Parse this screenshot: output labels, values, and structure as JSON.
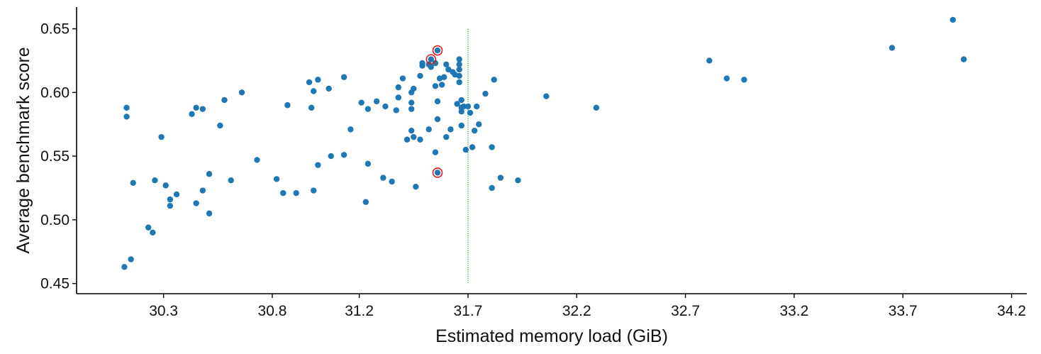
{
  "chart_data": {
    "type": "scatter",
    "title": "",
    "xlabel": "Estimated memory load (GiB)",
    "ylabel": "Average benchmark score",
    "xlim": [
      29.9,
      34.27
    ],
    "ylim": [
      0.442,
      0.667
    ],
    "x_ticks": [
      30.3,
      30.8,
      31.2,
      31.7,
      32.2,
      32.7,
      33.2,
      33.7,
      34.2
    ],
    "x_tick_labels": [
      "30.3",
      "30.8",
      "31.2",
      "31.7",
      "32.2",
      "32.7",
      "33.2",
      "33.7",
      "34.2"
    ],
    "y_ticks": [
      0.45,
      0.5,
      0.55,
      0.6,
      0.65
    ],
    "y_tick_labels": [
      "0.45",
      "0.50",
      "0.55",
      "0.60",
      "0.65"
    ],
    "grid": false,
    "vline": {
      "x": 31.7,
      "y_range": [
        0.45,
        0.65
      ],
      "color": "#2ca02c",
      "style": "dotted"
    },
    "point_color": "#1f77b4",
    "highlight_color": "#e31a1c",
    "points": [
      [
        30.12,
        0.463
      ],
      [
        30.15,
        0.469
      ],
      [
        30.16,
        0.529
      ],
      [
        30.13,
        0.588
      ],
      [
        30.13,
        0.581
      ],
      [
        30.23,
        0.494
      ],
      [
        30.25,
        0.49
      ],
      [
        30.26,
        0.531
      ],
      [
        30.29,
        0.565
      ],
      [
        30.31,
        0.527
      ],
      [
        30.33,
        0.516
      ],
      [
        30.33,
        0.511
      ],
      [
        30.36,
        0.52
      ],
      [
        30.43,
        0.583
      ],
      [
        30.45,
        0.588
      ],
      [
        30.45,
        0.513
      ],
      [
        30.48,
        0.587
      ],
      [
        30.48,
        0.523
      ],
      [
        30.51,
        0.536
      ],
      [
        30.51,
        0.505
      ],
      [
        30.56,
        0.574
      ],
      [
        30.58,
        0.594
      ],
      [
        30.61,
        0.531
      ],
      [
        30.66,
        0.6
      ],
      [
        30.73,
        0.547
      ],
      [
        30.82,
        0.532
      ],
      [
        30.85,
        0.521
      ],
      [
        30.87,
        0.59
      ],
      [
        30.91,
        0.521
      ],
      [
        30.97,
        0.608
      ],
      [
        30.98,
        0.588
      ],
      [
        30.99,
        0.601
      ],
      [
        30.99,
        0.523
      ],
      [
        31.01,
        0.543
      ],
      [
        31.01,
        0.61
      ],
      [
        31.06,
        0.603
      ],
      [
        31.07,
        0.55
      ],
      [
        31.13,
        0.551
      ],
      [
        31.13,
        0.612
      ],
      [
        31.16,
        0.571
      ],
      [
        31.21,
        0.592
      ],
      [
        31.23,
        0.514
      ],
      [
        31.24,
        0.544
      ],
      [
        31.24,
        0.587
      ],
      [
        31.28,
        0.593
      ],
      [
        31.31,
        0.533
      ],
      [
        31.32,
        0.589
      ],
      [
        31.35,
        0.53
      ],
      [
        31.37,
        0.586
      ],
      [
        31.38,
        0.604
      ],
      [
        31.38,
        0.596
      ],
      [
        31.4,
        0.611
      ],
      [
        31.42,
        0.563
      ],
      [
        31.44,
        0.592
      ],
      [
        31.44,
        0.587
      ],
      [
        31.44,
        0.57
      ],
      [
        31.44,
        0.6
      ],
      [
        31.45,
        0.603
      ],
      [
        31.45,
        0.565
      ],
      [
        31.46,
        0.526
      ],
      [
        31.48,
        0.613
      ],
      [
        31.48,
        0.563
      ],
      [
        31.49,
        0.621
      ],
      [
        31.49,
        0.623
      ],
      [
        31.52,
        0.622
      ],
      [
        31.52,
        0.571
      ],
      [
        31.53,
        0.62
      ],
      [
        31.55,
        0.623
      ],
      [
        31.55,
        0.605
      ],
      [
        31.55,
        0.553
      ],
      [
        31.56,
        0.579
      ],
      [
        31.56,
        0.593
      ],
      [
        31.57,
        0.611
      ],
      [
        31.58,
        0.606
      ],
      [
        31.59,
        0.612
      ],
      [
        31.6,
        0.622
      ],
      [
        31.6,
        0.565
      ],
      [
        31.61,
        0.618
      ],
      [
        31.62,
        0.571
      ],
      [
        31.63,
        0.616
      ],
      [
        31.64,
        0.614
      ],
      [
        31.65,
        0.591
      ],
      [
        31.66,
        0.626
      ],
      [
        31.66,
        0.622
      ],
      [
        31.66,
        0.618
      ],
      [
        31.66,
        0.613
      ],
      [
        31.66,
        0.608
      ],
      [
        31.67,
        0.594
      ],
      [
        31.67,
        0.588
      ],
      [
        31.67,
        0.585
      ],
      [
        31.67,
        0.574
      ],
      [
        31.68,
        0.589
      ],
      [
        31.69,
        0.555
      ],
      [
        31.7,
        0.589
      ],
      [
        31.71,
        0.584
      ],
      [
        31.72,
        0.557
      ],
      [
        31.73,
        0.57
      ],
      [
        31.74,
        0.589
      ],
      [
        31.75,
        0.575
      ],
      [
        31.78,
        0.599
      ],
      [
        31.81,
        0.525
      ],
      [
        31.81,
        0.557
      ],
      [
        31.82,
        0.61
      ],
      [
        31.85,
        0.533
      ],
      [
        31.93,
        0.531
      ],
      [
        32.06,
        0.597
      ],
      [
        32.29,
        0.588
      ],
      [
        32.81,
        0.625
      ],
      [
        32.89,
        0.611
      ],
      [
        32.97,
        0.61
      ],
      [
        33.65,
        0.635
      ],
      [
        33.93,
        0.657
      ],
      [
        33.98,
        0.626
      ]
    ],
    "highlighted_points": [
      [
        31.56,
        0.633
      ],
      [
        31.53,
        0.626
      ],
      [
        31.56,
        0.537
      ]
    ]
  }
}
